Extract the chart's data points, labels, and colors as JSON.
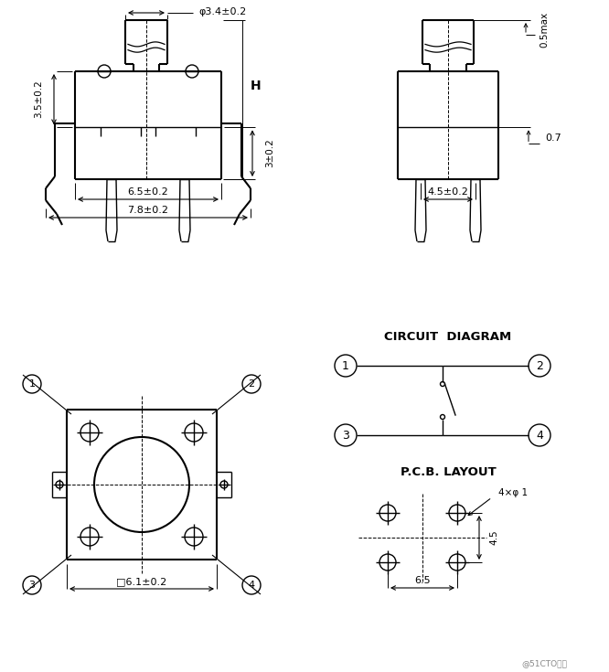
{
  "bg_color": "#ffffff",
  "line_color": "#000000",
  "fig_width": 6.66,
  "fig_height": 7.35,
  "dpi": 100,
  "watermark": "@51CTO博客",
  "labels": {
    "dim_3_4": "φ3.4±0.2",
    "dim_H": "H",
    "dim_3_5": "3.5±0.2",
    "dim_3": "3±0.2",
    "dim_6_5": "6.5±0.2",
    "dim_7_8": "7.8±0.2",
    "dim_6_1": "□6.1±0.2",
    "dim_0_5max": "0.5max",
    "dim_0_7": "0.7",
    "dim_4_5_02": "4.5±0.2",
    "circuit_diagram": "CIRCUIT  DIAGRAM",
    "pcb_layout": "P.C.B. LAYOUT",
    "dim_4x1": "4×φ 1",
    "dim_4_5": "4.5",
    "dim_6_5b": "6.5"
  }
}
